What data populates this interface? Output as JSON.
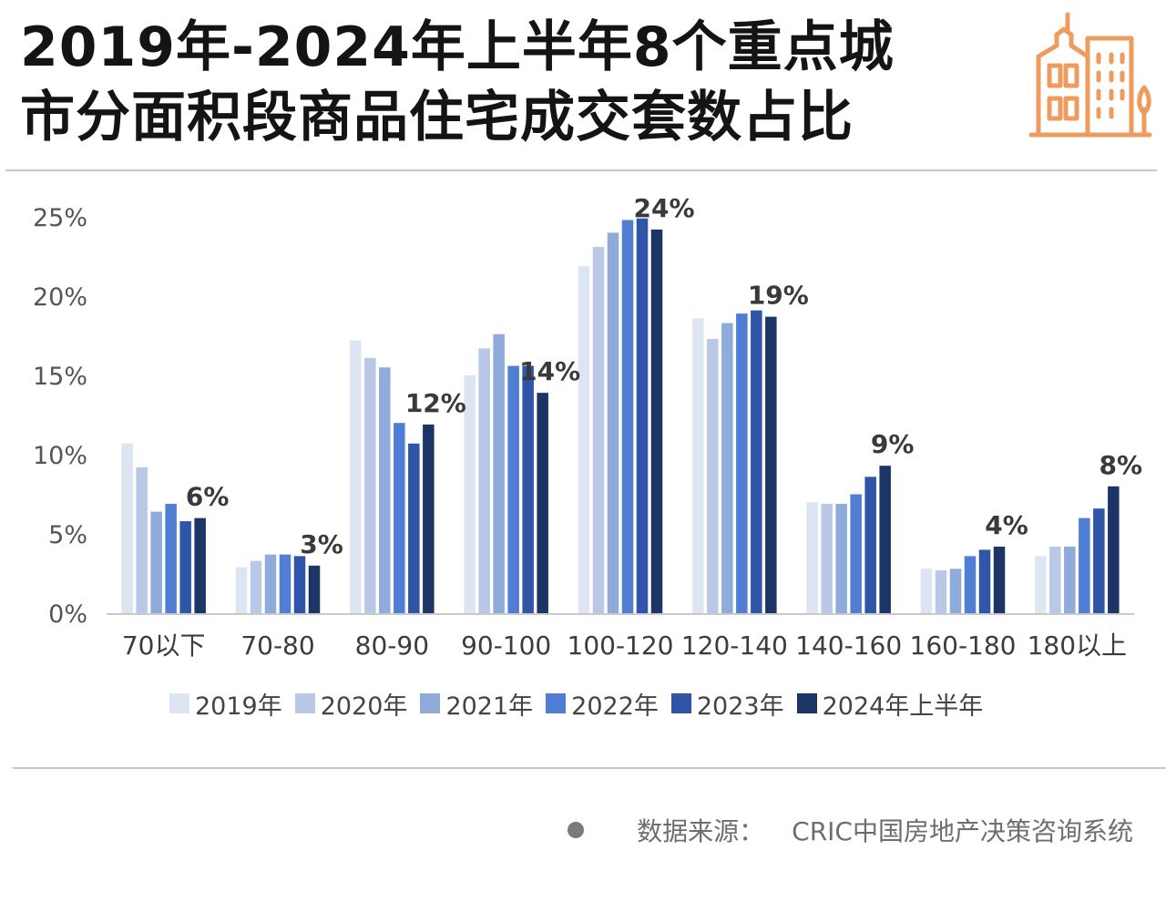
{
  "title": {
    "line1": "2019年-2024年上半年8个重点城",
    "line2": "市分面积段商品住宅成交套数占比"
  },
  "icon": "building-icon",
  "colors": {
    "series": [
      "#dde4f2",
      "#b9c8e6",
      "#8fabdc",
      "#4f7ed4",
      "#2f55a8",
      "#1c3566"
    ],
    "axis_text": "#555555",
    "accent_icon": "#ee9b5e"
  },
  "chart_data": {
    "type": "bar",
    "categories": [
      "70以下",
      "70-80",
      "80-90",
      "90-100",
      "100-120",
      "120-140",
      "140-160",
      "160-180",
      "180以上"
    ],
    "series": [
      {
        "name": "2019年",
        "values": [
          10.7,
          2.9,
          17.2,
          15.0,
          21.9,
          18.6,
          7.0,
          2.8,
          3.6
        ]
      },
      {
        "name": "2020年",
        "values": [
          9.2,
          3.3,
          16.1,
          16.7,
          23.1,
          17.3,
          6.9,
          2.7,
          4.2
        ]
      },
      {
        "name": "2021年",
        "values": [
          6.4,
          3.7,
          15.5,
          17.6,
          24.0,
          18.3,
          6.9,
          2.8,
          4.2
        ]
      },
      {
        "name": "2022年",
        "values": [
          6.9,
          3.7,
          12.0,
          15.6,
          24.8,
          18.9,
          7.5,
          3.6,
          6.0
        ]
      },
      {
        "name": "2023年",
        "values": [
          5.8,
          3.6,
          10.7,
          15.6,
          24.9,
          19.1,
          8.6,
          4.0,
          6.6
        ]
      },
      {
        "name": "2024年上半年",
        "values": [
          6.0,
          3.0,
          11.9,
          13.9,
          24.2,
          18.7,
          9.3,
          4.2,
          8.0
        ]
      }
    ],
    "data_labels": [
      "6%",
      "3%",
      "12%",
      "14%",
      "24%",
      "19%",
      "9%",
      "4%",
      "8%"
    ],
    "y_ticks": [
      "0%",
      "5%",
      "10%",
      "15%",
      "20%",
      "25%"
    ],
    "ylim": [
      0,
      25
    ],
    "grid": false,
    "legend_position": "bottom"
  },
  "source": {
    "label": "数据来源：",
    "text": "CRIC中国房地产决策咨询系统"
  }
}
